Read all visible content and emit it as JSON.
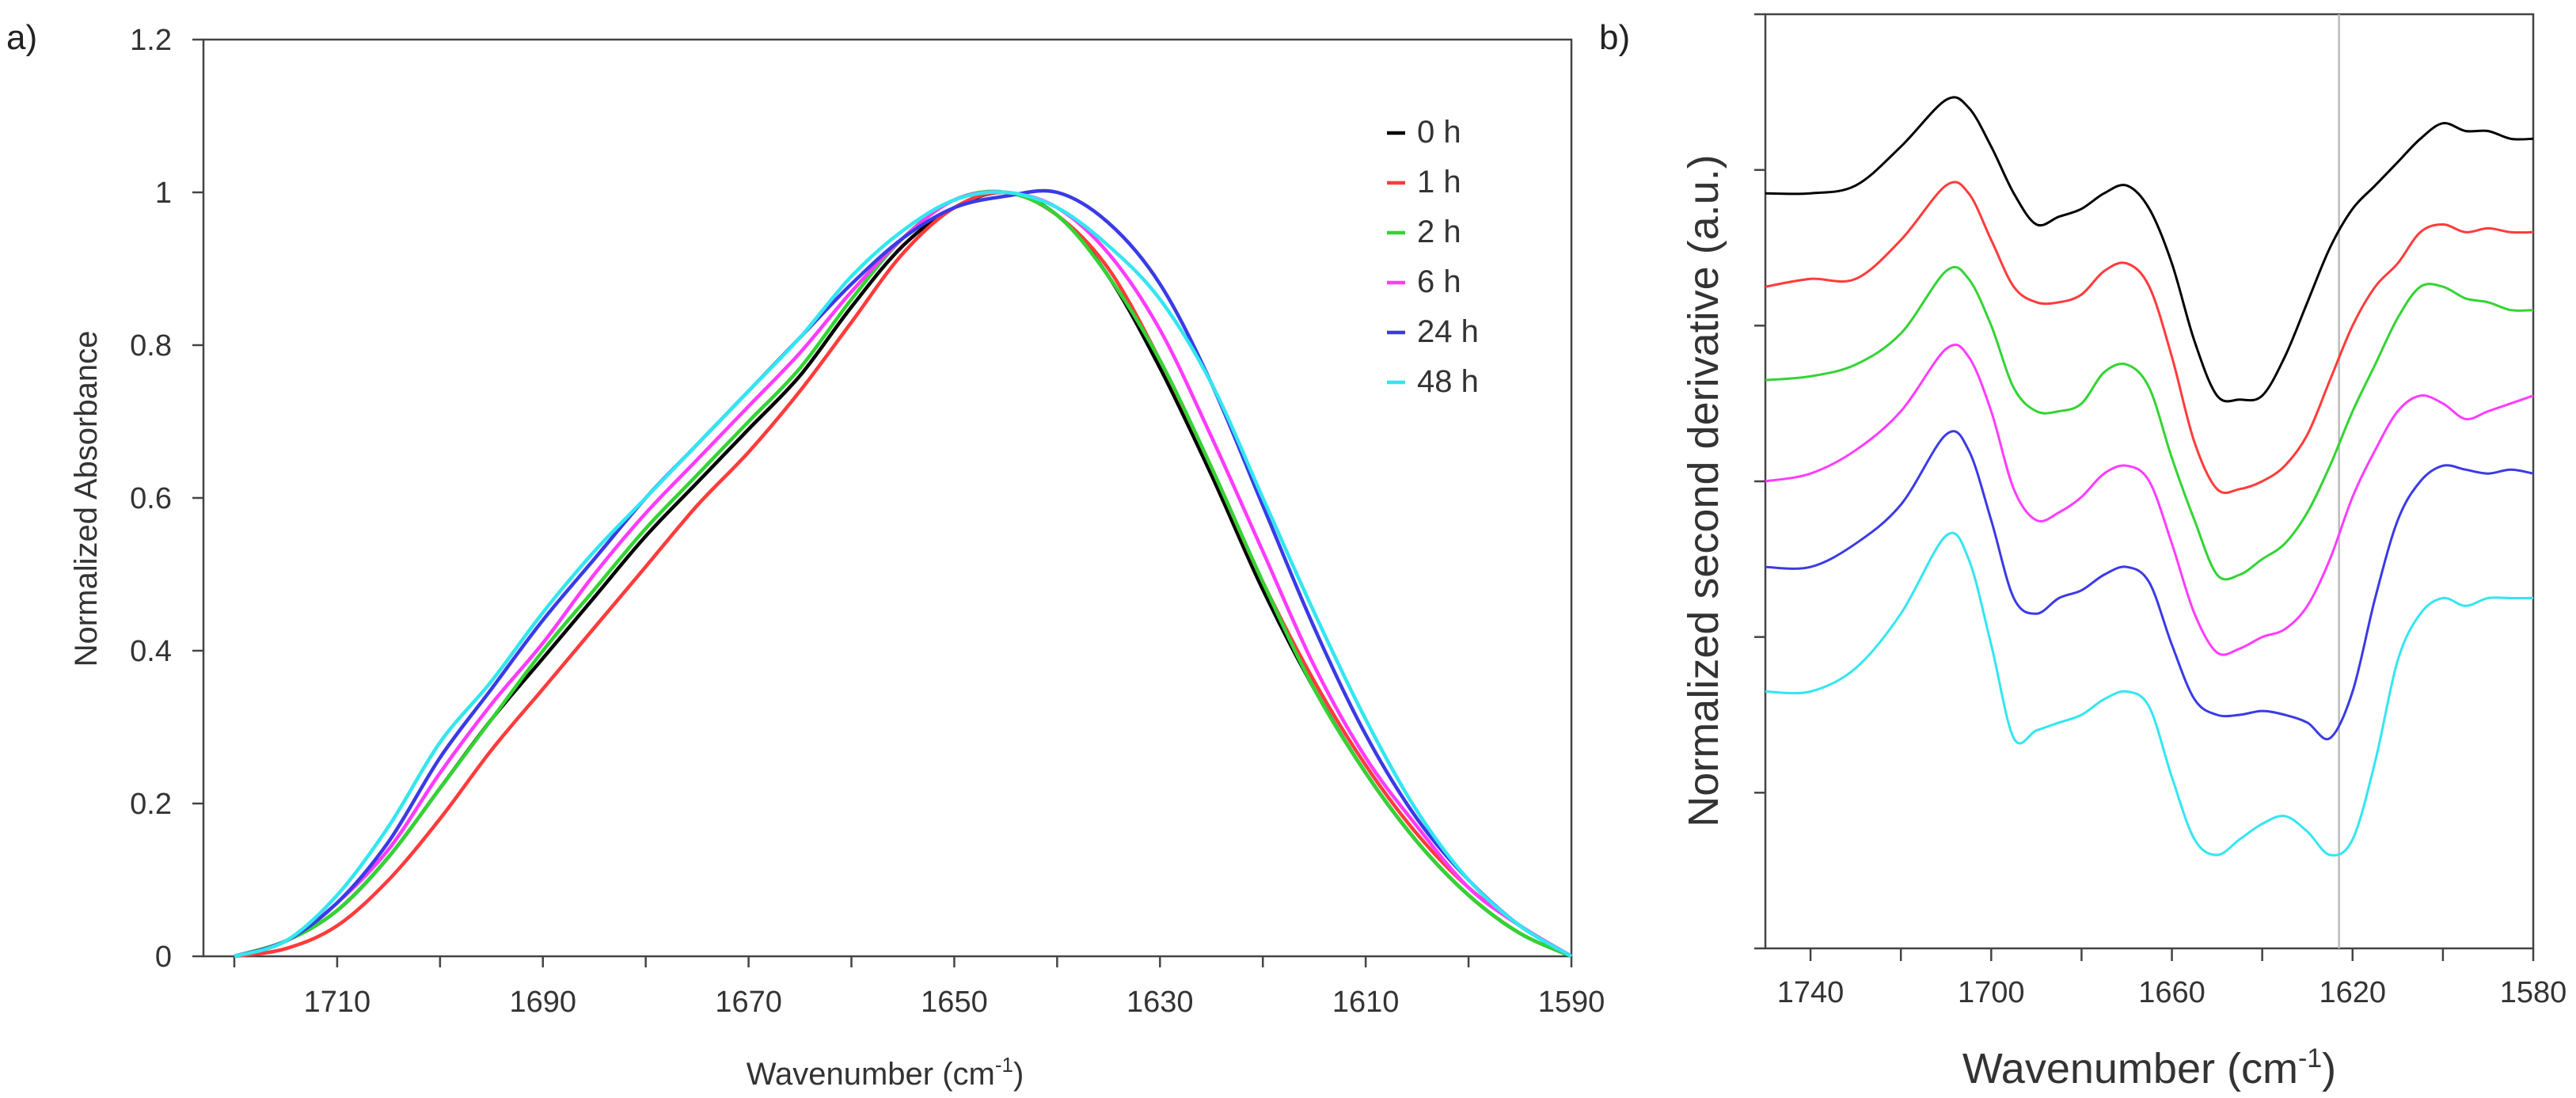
{
  "chart_data": [
    {
      "type": "line",
      "panel_label": "a)",
      "xlabel": "Wavenumber (cm",
      "xlabel_sup": "-1",
      "xlabel_close": ")",
      "ylabel": "Normalized Absorbance",
      "xlim": [
        1723,
        1590
      ],
      "ylim": [
        0,
        1.2
      ],
      "xticks": [
        1710,
        1690,
        1670,
        1650,
        1630,
        1610,
        1590
      ],
      "yticks": [
        "0",
        "0.2",
        "0.4",
        "0.6",
        "0.8",
        "1",
        "1.2"
      ],
      "legend_position": "top-right",
      "x": [
        1720,
        1715,
        1710,
        1705,
        1700,
        1695,
        1690,
        1685,
        1680,
        1675,
        1670,
        1665,
        1660,
        1655,
        1650,
        1645,
        1640,
        1635,
        1630,
        1625,
        1620,
        1615,
        1610,
        1605,
        1600,
        1595,
        1590
      ],
      "series": [
        {
          "name": "0 h",
          "color": "#000000",
          "values": [
            0,
            0.02,
            0.06,
            0.13,
            0.22,
            0.31,
            0.39,
            0.47,
            0.55,
            0.62,
            0.69,
            0.76,
            0.85,
            0.93,
            0.98,
            1.0,
            0.97,
            0.89,
            0.77,
            0.63,
            0.48,
            0.35,
            0.24,
            0.15,
            0.08,
            0.03,
            0
          ]
        },
        {
          "name": "1 h",
          "color": "#ff3b3b",
          "values": [
            0,
            0.01,
            0.04,
            0.1,
            0.18,
            0.27,
            0.35,
            0.43,
            0.51,
            0.59,
            0.66,
            0.74,
            0.83,
            0.92,
            0.98,
            1.0,
            0.97,
            0.9,
            0.78,
            0.64,
            0.49,
            0.36,
            0.25,
            0.16,
            0.09,
            0.04,
            0
          ]
        },
        {
          "name": "2 h",
          "color": "#33d433",
          "values": [
            0,
            0.02,
            0.06,
            0.13,
            0.22,
            0.31,
            0.4,
            0.48,
            0.56,
            0.63,
            0.7,
            0.77,
            0.86,
            0.94,
            0.99,
            1.0,
            0.97,
            0.89,
            0.78,
            0.64,
            0.49,
            0.35,
            0.24,
            0.15,
            0.08,
            0.03,
            0
          ]
        },
        {
          "name": "6 h",
          "color": "#ff3bff",
          "values": [
            0,
            0.02,
            0.07,
            0.14,
            0.24,
            0.33,
            0.41,
            0.5,
            0.58,
            0.65,
            0.72,
            0.79,
            0.87,
            0.94,
            0.99,
            1.0,
            0.98,
            0.92,
            0.82,
            0.68,
            0.53,
            0.38,
            0.26,
            0.17,
            0.09,
            0.04,
            0
          ]
        },
        {
          "name": "24 h",
          "color": "#3a3ae6",
          "values": [
            0,
            0.02,
            0.07,
            0.15,
            0.26,
            0.35,
            0.44,
            0.52,
            0.6,
            0.67,
            0.74,
            0.81,
            0.88,
            0.94,
            0.98,
            0.995,
            1.0,
            0.96,
            0.88,
            0.75,
            0.59,
            0.43,
            0.29,
            0.18,
            0.1,
            0.04,
            0
          ]
        },
        {
          "name": "48 h",
          "color": "#33e6f0",
          "values": [
            0,
            0.02,
            0.08,
            0.17,
            0.28,
            0.36,
            0.45,
            0.53,
            0.6,
            0.67,
            0.74,
            0.81,
            0.89,
            0.95,
            0.99,
            1.0,
            0.98,
            0.93,
            0.86,
            0.75,
            0.6,
            0.45,
            0.31,
            0.19,
            0.1,
            0.04,
            0
          ]
        }
      ]
    },
    {
      "type": "line",
      "panel_label": "b)",
      "xlabel": "Wavenumber (cm",
      "xlabel_sup": "-1",
      "xlabel_close": ")",
      "ylabel": "Normalized second derivative (a.u.)",
      "xlim": [
        1750,
        1580
      ],
      "ylim": [
        0,
        12
      ],
      "xticks": [
        1740,
        1700,
        1660,
        1620,
        1580
      ],
      "reference_line_x": 1623,
      "x": [
        1750,
        1740,
        1730,
        1720,
        1710,
        1705,
        1700,
        1695,
        1690,
        1685,
        1680,
        1675,
        1670,
        1665,
        1660,
        1655,
        1650,
        1645,
        1640,
        1635,
        1630,
        1625,
        1620,
        1615,
        1610,
        1605,
        1600,
        1595,
        1590,
        1585,
        1580
      ],
      "series": [
        {
          "name": "0 h",
          "color": "#000000",
          "values": [
            9.7,
            9.7,
            9.8,
            10.3,
            10.9,
            10.8,
            10.3,
            9.7,
            9.3,
            9.4,
            9.5,
            9.7,
            9.8,
            9.5,
            8.8,
            7.8,
            7.1,
            7.05,
            7.1,
            7.6,
            8.3,
            9.0,
            9.5,
            9.8,
            10.1,
            10.4,
            10.6,
            10.5,
            10.5,
            10.4,
            10.4
          ]
        },
        {
          "name": "1 h",
          "color": "#ff3b3b",
          "values": [
            8.5,
            8.6,
            8.6,
            9.1,
            9.8,
            9.7,
            9.1,
            8.5,
            8.3,
            8.3,
            8.4,
            8.7,
            8.8,
            8.5,
            7.6,
            6.5,
            5.9,
            5.9,
            6.0,
            6.2,
            6.6,
            7.3,
            8.0,
            8.5,
            8.8,
            9.2,
            9.3,
            9.2,
            9.25,
            9.2,
            9.2
          ]
        },
        {
          "name": "2 h",
          "color": "#33d433",
          "values": [
            7.3,
            7.35,
            7.5,
            7.9,
            8.7,
            8.6,
            8.0,
            7.2,
            6.9,
            6.9,
            7.0,
            7.4,
            7.5,
            7.2,
            6.3,
            5.5,
            4.8,
            4.8,
            5.0,
            5.2,
            5.6,
            6.2,
            6.9,
            7.5,
            8.1,
            8.5,
            8.5,
            8.35,
            8.3,
            8.2,
            8.2
          ]
        },
        {
          "name": "6 h",
          "color": "#ff3bff",
          "values": [
            6.0,
            6.1,
            6.4,
            6.9,
            7.7,
            7.6,
            6.9,
            5.9,
            5.5,
            5.6,
            5.8,
            6.1,
            6.2,
            6.0,
            5.2,
            4.3,
            3.8,
            3.85,
            4.0,
            4.1,
            4.4,
            5.0,
            5.8,
            6.4,
            6.9,
            7.1,
            7.0,
            6.8,
            6.9,
            7.0,
            7.1
          ]
        },
        {
          "name": "24 h",
          "color": "#3a3ae6",
          "values": [
            4.9,
            4.9,
            5.2,
            5.7,
            6.6,
            6.4,
            5.5,
            4.5,
            4.3,
            4.5,
            4.6,
            4.8,
            4.9,
            4.7,
            3.9,
            3.2,
            3.0,
            3.0,
            3.05,
            3.0,
            2.9,
            2.7,
            3.3,
            4.5,
            5.5,
            6.0,
            6.2,
            6.15,
            6.1,
            6.15,
            6.1
          ]
        },
        {
          "name": "48 h",
          "color": "#33e6f0",
          "values": [
            3.3,
            3.3,
            3.6,
            4.3,
            5.3,
            5.0,
            3.9,
            2.7,
            2.8,
            2.9,
            3.0,
            3.2,
            3.3,
            3.1,
            2.2,
            1.4,
            1.2,
            1.4,
            1.6,
            1.7,
            1.5,
            1.2,
            1.4,
            2.4,
            3.7,
            4.3,
            4.5,
            4.4,
            4.5,
            4.5,
            4.5
          ]
        }
      ]
    }
  ]
}
